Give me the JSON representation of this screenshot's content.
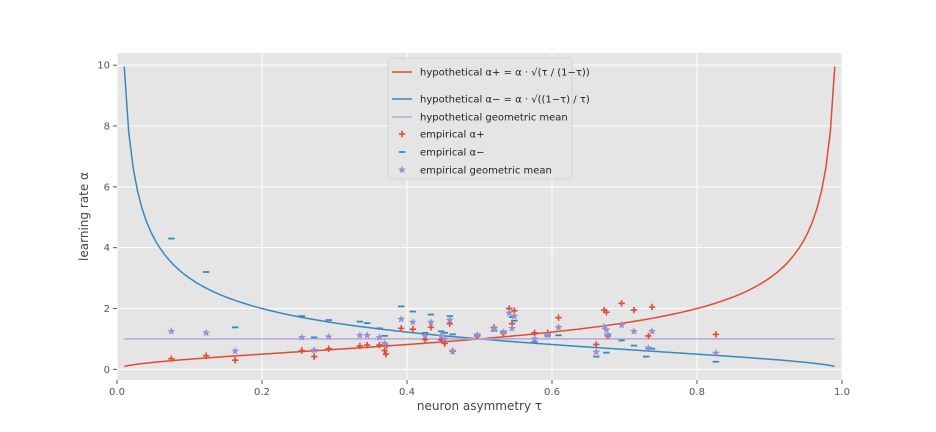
{
  "chart_data": {
    "type": "scatter",
    "xlabel": "neuron asymmetry τ",
    "ylabel": "learning rate α",
    "xlim": [
      0.0,
      1.0
    ],
    "ylim": [
      -0.35,
      10.4
    ],
    "x_ticks": [
      "0.0",
      "0.2",
      "0.4",
      "0.6",
      "0.8",
      "1.0"
    ],
    "y_ticks": [
      "0",
      "2",
      "4",
      "6",
      "8",
      "10"
    ],
    "grid": true,
    "legend_position": "top-center",
    "colors": {
      "alpha_plus": "#e24a33",
      "alpha_minus": "#348abd",
      "geo_line": "#b7a9dc",
      "geo_points": "#988ed5"
    },
    "series": [
      {
        "name": "hypothetical α+ = α · sqrt(τ / (1−τ))",
        "kind": "line",
        "formula": "sqrt(t/(1-t))",
        "x_range": [
          0.01,
          0.99
        ],
        "color": "#e24a33"
      },
      {
        "name": "hypothetical α− = α · sqrt((1−τ) / τ)",
        "kind": "line",
        "formula": "sqrt((1-t)/t)",
        "x_range": [
          0.01,
          0.99
        ],
        "color": "#348abd"
      },
      {
        "name": "hypothetical geometric mean",
        "kind": "line",
        "formula": "1",
        "x_range": [
          0.01,
          0.99
        ],
        "color": "#b7a9dc"
      },
      {
        "name": "empirical α+",
        "kind": "scatter",
        "marker": "plus",
        "color": "#e24a33",
        "x": [
          0.075,
          0.123,
          0.163,
          0.255,
          0.272,
          0.292,
          0.335,
          0.345,
          0.362,
          0.369,
          0.371,
          0.372,
          0.392,
          0.408,
          0.425,
          0.433,
          0.447,
          0.452,
          0.459,
          0.463,
          0.497,
          0.52,
          0.533,
          0.541,
          0.545,
          0.548,
          0.576,
          0.594,
          0.609,
          0.661,
          0.672,
          0.675,
          0.677,
          0.696,
          0.713,
          0.733,
          0.738,
          0.826
        ],
        "y": [
          0.35,
          0.45,
          0.3,
          0.62,
          0.42,
          0.68,
          0.77,
          0.8,
          0.8,
          0.62,
          0.5,
          0.78,
          1.35,
          1.32,
          0.98,
          1.38,
          0.97,
          0.85,
          1.5,
          0.6,
          1.1,
          1.38,
          1.2,
          2.0,
          1.5,
          1.93,
          1.2,
          1.2,
          1.7,
          0.82,
          1.95,
          1.88,
          1.1,
          2.17,
          1.95,
          1.1,
          2.05,
          1.15
        ]
      },
      {
        "name": "empirical α−",
        "kind": "scatter",
        "marker": "hline",
        "color": "#348abd",
        "x": [
          0.075,
          0.123,
          0.163,
          0.255,
          0.272,
          0.292,
          0.335,
          0.345,
          0.362,
          0.369,
          0.392,
          0.408,
          0.425,
          0.433,
          0.447,
          0.452,
          0.459,
          0.463,
          0.497,
          0.52,
          0.533,
          0.545,
          0.548,
          0.576,
          0.594,
          0.609,
          0.661,
          0.675,
          0.677,
          0.696,
          0.713,
          0.73,
          0.733,
          0.738,
          0.826
        ],
        "y": [
          4.3,
          3.2,
          1.38,
          1.75,
          1.05,
          1.62,
          1.57,
          1.52,
          1.35,
          1.1,
          2.07,
          1.9,
          1.2,
          1.8,
          1.25,
          1.2,
          1.75,
          1.15,
          1.15,
          1.27,
          1.25,
          1.72,
          1.6,
          0.9,
          1.1,
          1.12,
          0.42,
          0.55,
          1.15,
          0.95,
          0.78,
          0.42,
          0.7,
          0.68,
          0.25
        ]
      },
      {
        "name": "empirical geometric mean",
        "kind": "scatter",
        "marker": "star",
        "color": "#988ed5",
        "x": [
          0.075,
          0.123,
          0.163,
          0.255,
          0.272,
          0.292,
          0.335,
          0.345,
          0.362,
          0.369,
          0.392,
          0.408,
          0.425,
          0.433,
          0.447,
          0.452,
          0.459,
          0.463,
          0.497,
          0.52,
          0.533,
          0.541,
          0.545,
          0.548,
          0.576,
          0.594,
          0.609,
          0.661,
          0.672,
          0.675,
          0.677,
          0.696,
          0.713,
          0.733,
          0.738,
          0.826
        ],
        "y": [
          1.25,
          1.2,
          0.6,
          1.05,
          0.63,
          1.07,
          1.12,
          1.12,
          1.05,
          0.85,
          1.65,
          1.55,
          1.1,
          1.55,
          1.1,
          1.0,
          1.62,
          0.6,
          1.12,
          1.33,
          1.22,
          1.85,
          1.35,
          1.75,
          1.0,
          1.12,
          1.38,
          0.57,
          1.4,
          1.3,
          1.12,
          1.45,
          1.25,
          0.7,
          1.25,
          0.53
        ]
      }
    ],
    "legend": [
      {
        "text": "hypothetical α+ = α · √(τ / (1−τ))",
        "symbol": "line",
        "color": "#e24a33"
      },
      {
        "text": "hypothetical α− = α · √((1−τ) / τ)",
        "symbol": "line",
        "color": "#348abd"
      },
      {
        "text": "hypothetical geometric mean",
        "symbol": "line",
        "color": "#b7a9dc"
      },
      {
        "text": "empirical α+",
        "symbol": "plus",
        "color": "#e24a33"
      },
      {
        "text": "empirical α−",
        "symbol": "hline",
        "color": "#348abd"
      },
      {
        "text": "empirical geometric mean",
        "symbol": "star",
        "color": "#988ed5"
      }
    ]
  }
}
